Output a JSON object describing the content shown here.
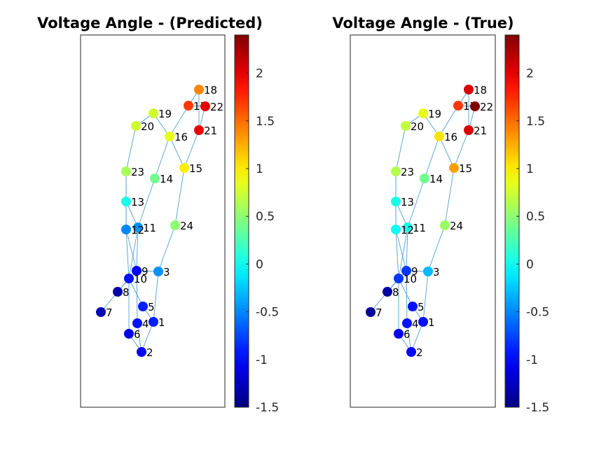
{
  "chart_data": [
    {
      "type": "network",
      "title": "Voltage Angle - (Predicted)",
      "colormap": "jet",
      "clim": [
        -1.5,
        2.4
      ],
      "colorbar_ticks": [
        "2",
        "1.5",
        "1",
        "0.5",
        "0",
        "-0.5",
        "-1",
        "-1.5"
      ],
      "colorbar_tick_values": [
        2,
        1.5,
        1,
        0.5,
        0,
        -0.5,
        -1,
        -1.5
      ],
      "nodes": [
        {
          "id": "1",
          "value": -0.9
        },
        {
          "id": "2",
          "value": -1.0
        },
        {
          "id": "3",
          "value": -0.45
        },
        {
          "id": "4",
          "value": -0.95
        },
        {
          "id": "5",
          "value": -0.9
        },
        {
          "id": "6",
          "value": -1.1
        },
        {
          "id": "7",
          "value": -1.3
        },
        {
          "id": "8",
          "value": -1.35
        },
        {
          "id": "9",
          "value": -1.0
        },
        {
          "id": "10",
          "value": -0.95
        },
        {
          "id": "11",
          "value": -0.45
        },
        {
          "id": "12",
          "value": -0.5
        },
        {
          "id": "13",
          "value": 0.05
        },
        {
          "id": "14",
          "value": 0.4
        },
        {
          "id": "15",
          "value": 1.0
        },
        {
          "id": "16",
          "value": 0.85
        },
        {
          "id": "17",
          "value": 1.7
        },
        {
          "id": "18",
          "value": 1.4
        },
        {
          "id": "19",
          "value": 0.75
        },
        {
          "id": "20",
          "value": 0.75
        },
        {
          "id": "21",
          "value": 2.0
        },
        {
          "id": "22",
          "value": 2.0
        },
        {
          "id": "23",
          "value": 0.6
        },
        {
          "id": "24",
          "value": 0.5
        }
      ]
    },
    {
      "type": "network",
      "title": "Voltage Angle - (True)",
      "colormap": "jet",
      "clim": [
        -1.5,
        2.4
      ],
      "colorbar_ticks": [
        "2",
        "1.5",
        "1",
        "0.5",
        "0",
        "-0.5",
        "-1",
        "-1.5"
      ],
      "colorbar_tick_values": [
        2,
        1.5,
        1,
        0.5,
        0,
        -0.5,
        -1,
        -1.5
      ],
      "nodes": [
        {
          "id": "1",
          "value": -0.95
        },
        {
          "id": "2",
          "value": -1.0
        },
        {
          "id": "3",
          "value": -0.3
        },
        {
          "id": "4",
          "value": -0.95
        },
        {
          "id": "5",
          "value": -0.95
        },
        {
          "id": "6",
          "value": -1.05
        },
        {
          "id": "7",
          "value": -1.4
        },
        {
          "id": "8",
          "value": -1.35
        },
        {
          "id": "9",
          "value": -0.8
        },
        {
          "id": "10",
          "value": -0.8
        },
        {
          "id": "11",
          "value": 0.05
        },
        {
          "id": "12",
          "value": 0.0
        },
        {
          "id": "13",
          "value": 0.05
        },
        {
          "id": "14",
          "value": 0.4
        },
        {
          "id": "15",
          "value": 1.3
        },
        {
          "id": "16",
          "value": 1.05
        },
        {
          "id": "17",
          "value": 1.7
        },
        {
          "id": "18",
          "value": 2.05
        },
        {
          "id": "19",
          "value": 0.85
        },
        {
          "id": "20",
          "value": 0.7
        },
        {
          "id": "21",
          "value": 2.05
        },
        {
          "id": "22",
          "value": 2.4
        },
        {
          "id": "23",
          "value": 0.65
        },
        {
          "id": "24",
          "value": 0.55
        }
      ]
    }
  ]
}
